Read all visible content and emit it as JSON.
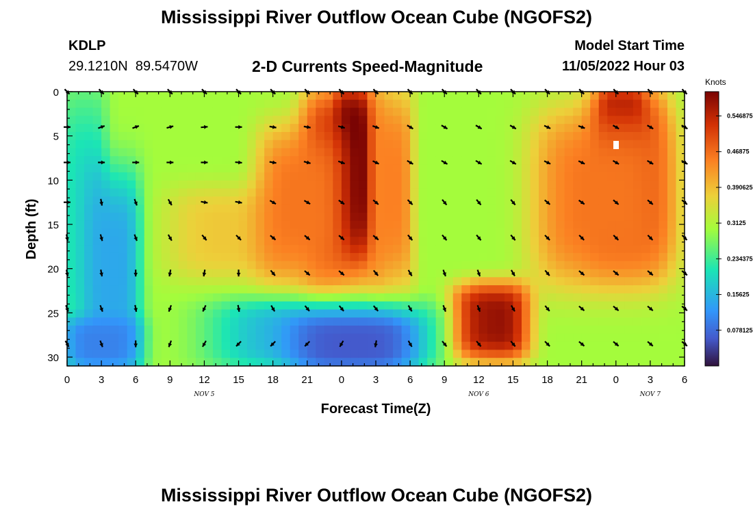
{
  "header": {
    "title": "Mississippi River Outflow Ocean Cube (NGOFS2)",
    "station": "KDLP",
    "coords": "29.1210N  89.5470W",
    "plot_title": "2-D Currents Speed-Magnitude",
    "model_start_label": "Model Start Time",
    "model_start_value": "11/05/2022 Hour 03"
  },
  "footer": {
    "title_repeat": "Mississippi River Outflow Ocean Cube (NGOFS2)"
  },
  "chart_data": {
    "type": "heatmap",
    "title": "2-D Currents Speed-Magnitude",
    "xlabel": "Forecast Time(Z)",
    "ylabel": "Depth (ft)",
    "x_tick_labels": [
      "0",
      "3",
      "6",
      "9",
      "12",
      "15",
      "18",
      "21",
      "0",
      "3",
      "6",
      "9",
      "12",
      "15",
      "18",
      "21",
      "0",
      "3",
      "6"
    ],
    "x_ticks_hours": [
      0,
      3,
      6,
      9,
      12,
      15,
      18,
      21,
      24,
      27,
      30,
      33,
      36,
      39,
      42,
      45,
      48,
      51,
      54
    ],
    "date_labels": [
      {
        "label": "NOV 5",
        "hour": 12
      },
      {
        "label": "NOV 6",
        "hour": 36
      },
      {
        "label": "NOV 7",
        "hour": 51
      }
    ],
    "y_tick_labels": [
      "0",
      "5",
      "10",
      "15",
      "20",
      "25",
      "30"
    ],
    "y_ticks": [
      0,
      5,
      10,
      15,
      20,
      25,
      30
    ],
    "xlim": [
      0,
      54
    ],
    "ylim": [
      0,
      31
    ],
    "y_inverted": true,
    "colorbar": {
      "units": "Knots",
      "ticks": [
        "0.546875",
        "0.46875",
        "0.390625",
        "0.3125",
        "0.234375",
        "0.15625",
        "0.078125"
      ],
      "tick_values": [
        0.546875,
        0.46875,
        0.390625,
        0.3125,
        0.234375,
        0.15625,
        0.078125
      ],
      "range": [
        0.0,
        0.6
      ],
      "colormap": "turbo"
    },
    "heat_blobs": [
      {
        "t0": 21,
        "t1": 27,
        "d0": 0,
        "d1": 21,
        "v": 0.58
      },
      {
        "t0": 24,
        "t1": 26,
        "d0": 0,
        "d1": 16,
        "v": 0.62
      },
      {
        "t0": 46,
        "t1": 52,
        "d0": 0,
        "d1": 19,
        "v": 0.56
      },
      {
        "t0": 47,
        "t1": 50,
        "d0": 0,
        "d1": 11,
        "v": 0.62
      },
      {
        "t0": 41,
        "t1": 53,
        "d0": 2,
        "d1": 22,
        "v": 0.46
      },
      {
        "t0": 34,
        "t1": 40,
        "d0": 22,
        "d1": 30,
        "v": 0.58
      },
      {
        "t0": 9,
        "t1": 21,
        "d0": 11,
        "d1": 21,
        "v": 0.38
      },
      {
        "t0": 17,
        "t1": 24,
        "d0": 4,
        "d1": 21,
        "v": 0.46
      },
      {
        "t0": 27,
        "t1": 30,
        "d0": 0,
        "d1": 22,
        "v": 0.45
      },
      {
        "t0": 0,
        "t1": 3,
        "d0": 0,
        "d1": 31,
        "v": 0.2
      },
      {
        "t0": 2,
        "t1": 6,
        "d0": 9,
        "d1": 31,
        "v": 0.14
      },
      {
        "t0": 0,
        "t1": 6,
        "d0": 26,
        "d1": 31,
        "v": 0.1
      },
      {
        "t0": 13,
        "t1": 32,
        "d0": 24,
        "d1": 31,
        "v": 0.15
      },
      {
        "t0": 20,
        "t1": 30,
        "d0": 26,
        "d1": 31,
        "v": 0.06
      },
      {
        "t0": 31,
        "t1": 35,
        "d0": 0,
        "d1": 20,
        "v": 0.3
      }
    ],
    "vector_rows_depth": [
      0,
      4,
      8,
      12.5,
      16.5,
      20.5,
      24.5,
      28.5
    ],
    "vector_cols_hours": [
      0,
      3,
      6,
      9,
      12,
      15,
      18,
      21,
      24,
      27,
      30,
      33,
      36,
      39,
      42,
      45,
      48,
      51,
      54
    ],
    "vector_directions_deg": [
      [
        135,
        135,
        135,
        135,
        135,
        135,
        135,
        135,
        135,
        135,
        135,
        135,
        135,
        135,
        135,
        135,
        135,
        135,
        135
      ],
      [
        90,
        70,
        70,
        75,
        85,
        90,
        100,
        100,
        105,
        110,
        120,
        120,
        120,
        120,
        115,
        110,
        120,
        120,
        120
      ],
      [
        90,
        90,
        90,
        90,
        90,
        95,
        100,
        105,
        110,
        115,
        120,
        120,
        120,
        120,
        115,
        115,
        120,
        120,
        120
      ],
      [
        90,
        170,
        160,
        150,
        100,
        100,
        120,
        120,
        125,
        130,
        135,
        140,
        140,
        140,
        130,
        125,
        130,
        130,
        130
      ],
      [
        170,
        165,
        160,
        150,
        140,
        135,
        130,
        130,
        130,
        130,
        140,
        140,
        140,
        140,
        135,
        135,
        135,
        135,
        135
      ],
      [
        170,
        170,
        180,
        190,
        190,
        180,
        140,
        130,
        130,
        140,
        150,
        160,
        160,
        150,
        140,
        130,
        130,
        130,
        130
      ],
      [
        160,
        160,
        170,
        200,
        205,
        170,
        150,
        140,
        140,
        140,
        150,
        160,
        160,
        150,
        140,
        130,
        130,
        130,
        130
      ],
      [
        150,
        160,
        180,
        200,
        210,
        225,
        225,
        225,
        210,
        190,
        150,
        140,
        140,
        140,
        135,
        130,
        130,
        130,
        130
      ]
    ]
  }
}
